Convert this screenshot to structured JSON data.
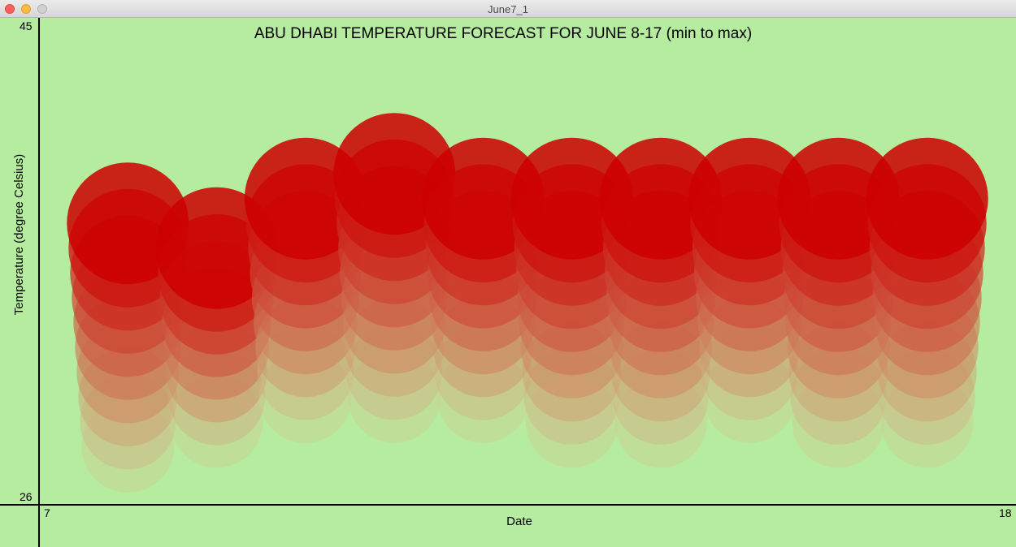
{
  "window": {
    "title": "June7_1"
  },
  "chart_data": {
    "type": "bubble",
    "title": "ABU DHABI TEMPERATURE FORECAST FOR JUNE 8-17 (min to max)",
    "xlabel": "Date",
    "ylabel": "Temperature (degree Celsius)",
    "xlim": [
      7,
      18
    ],
    "ylim": [
      26,
      45
    ],
    "x_tick_labels": [
      "7",
      "18"
    ],
    "y_tick_labels": [
      "45",
      "26"
    ],
    "days": [
      8,
      9,
      10,
      11,
      12,
      13,
      14,
      15,
      16,
      17
    ],
    "min_temp": [
      28,
      29,
      30,
      30,
      30,
      29,
      29,
      30,
      29,
      29
    ],
    "max_temp": [
      37,
      36,
      38,
      39,
      38,
      38,
      38,
      38,
      38,
      38
    ],
    "grid": false,
    "bubble_color": "#cc0000",
    "faded_color": "#d0c890",
    "background": "#b6ec9f"
  }
}
